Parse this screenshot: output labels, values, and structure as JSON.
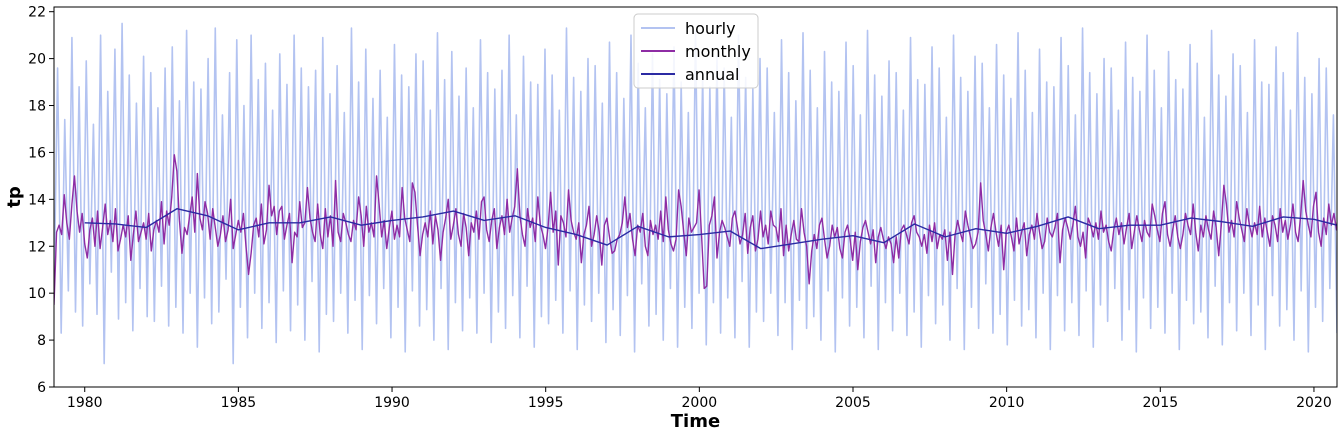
{
  "chart_data": {
    "type": "line",
    "xlabel": "Time",
    "ylabel": "tp",
    "xlim": [
      1979.0,
      2020.75
    ],
    "ylim": [
      6,
      22.2
    ],
    "x_ticks": [
      1980,
      1985,
      1990,
      1995,
      2000,
      2005,
      2010,
      2015,
      2020
    ],
    "y_ticks": [
      6,
      8,
      10,
      12,
      14,
      16,
      18,
      20,
      22
    ],
    "legend_position": "top-center",
    "grid": false,
    "series": [
      {
        "name": "hourly",
        "color": "#b3c3f1",
        "description_range": [
          7.0,
          21.5
        ],
        "x_start": 1979.0,
        "x_end": 2020.75,
        "mean": 12.8,
        "values": [
          9.8,
          19.6,
          8.3,
          17.4,
          10.1,
          20.9,
          9.2,
          18.8,
          8.6,
          19.9,
          10.4,
          17.2,
          9.1,
          21.0,
          7.0,
          18.6,
          10.9,
          20.4,
          8.9,
          21.5,
          9.6,
          19.3,
          8.4,
          18.1,
          10.2,
          20.1,
          9.0,
          19.4,
          8.8,
          17.9,
          10.3,
          19.6,
          8.6,
          20.5,
          9.4,
          18.2,
          8.3,
          21.2,
          10.0,
          19.0,
          7.7,
          18.7,
          9.8,
          20.0,
          8.7,
          21.3,
          9.2,
          17.6,
          10.6,
          19.4,
          7.0,
          20.8,
          9.4,
          18.0,
          8.1,
          21.0,
          10.0,
          19.1,
          8.5,
          19.8,
          9.6,
          17.8,
          7.9,
          20.2,
          10.1,
          18.9,
          8.4,
          21.0,
          9.5,
          19.6,
          8.0,
          18.8,
          10.5,
          19.5,
          7.5,
          20.9,
          9.1,
          18.5,
          8.8,
          19.7,
          10.0,
          17.7,
          8.3,
          21.3,
          9.7,
          19.0,
          7.6,
          20.4,
          9.9,
          18.3,
          8.7,
          19.5,
          10.2,
          17.5,
          8.1,
          20.6,
          9.4,
          19.3,
          7.5,
          18.8,
          10.1,
          20.2,
          8.6,
          19.9,
          9.3,
          17.8,
          8.0,
          21.1,
          10.2,
          19.1,
          7.6,
          20.3,
          9.6,
          18.4,
          8.4,
          19.6,
          9.8,
          17.9,
          8.3,
          20.8,
          10.0,
          19.4,
          7.9,
          18.7,
          9.2,
          19.5,
          8.5,
          21.0,
          9.9,
          17.6,
          8.1,
          20.1,
          10.3,
          19.0,
          7.7,
          18.9,
          9.0,
          20.4,
          8.7,
          19.3,
          9.7,
          17.8,
          8.3,
          21.3,
          10.1,
          19.2,
          7.6,
          18.6,
          9.5,
          20.0,
          8.8,
          19.7,
          10.0,
          18.1,
          7.9,
          20.7,
          9.3,
          19.4,
          8.2,
          18.3,
          9.9,
          21.0,
          7.5,
          19.8,
          10.4,
          17.9,
          8.6,
          20.2,
          9.1,
          19.1,
          8.0,
          18.5,
          10.2,
          20.5,
          7.7,
          19.0,
          9.4,
          17.7,
          8.5,
          21.2,
          10.0,
          19.3,
          7.8,
          18.8,
          9.6,
          20.1,
          8.3,
          19.6,
          9.8,
          17.5,
          8.1,
          21.0,
          10.5,
          19.2,
          7.7,
          18.7,
          9.2,
          20.0,
          8.8,
          19.6,
          10.0,
          17.7,
          8.2,
          20.8,
          9.6,
          19.4,
          7.6,
          18.2,
          9.7,
          21.1,
          8.5,
          19.5,
          9.0,
          17.9,
          8.0,
          20.3,
          10.1,
          19.0,
          7.5,
          18.6,
          9.8,
          20.7,
          8.6,
          19.7,
          9.4,
          17.6,
          8.1,
          21.2,
          10.3,
          19.3,
          7.6,
          18.4,
          9.6,
          19.9,
          8.4,
          19.4,
          10.0,
          17.8,
          8.2,
          20.9,
          9.2,
          19.1,
          7.7,
          18.9,
          9.9,
          20.5,
          8.7,
          19.6,
          9.5,
          17.5,
          8.0,
          21.0,
          10.2,
          19.2,
          7.6,
          18.6,
          9.4,
          20.1,
          8.5,
          19.8,
          10.4,
          17.9,
          8.3,
          20.6,
          9.1,
          19.3,
          7.8,
          18.3,
          9.7,
          21.1,
          8.6,
          19.5,
          9.3,
          17.7,
          8.1,
          20.4,
          10.0,
          19.0,
          7.6,
          18.8,
          9.9,
          20.9,
          8.4,
          19.7,
          9.6,
          17.6,
          8.2,
          21.3,
          10.1,
          19.4,
          7.7,
          18.5,
          9.5,
          20.0,
          8.8,
          19.6,
          10.2,
          17.8,
          8.0,
          20.7,
          9.3,
          19.2,
          7.5,
          18.6,
          9.8,
          21.0,
          8.5,
          19.5,
          9.4,
          17.9,
          8.3,
          20.3,
          10.0,
          19.1,
          7.6,
          18.7,
          9.7,
          20.6,
          8.7,
          19.8,
          9.2,
          17.5,
          8.1,
          21.2,
          10.3,
          19.3,
          7.8,
          18.4,
          9.6,
          20.2,
          8.4,
          19.7,
          10.0,
          17.7,
          8.2,
          20.8,
          9.5,
          19.0,
          7.6,
          18.9,
          9.9,
          20.5,
          8.6,
          19.4,
          9.3,
          17.8,
          8.0,
          21.1,
          10.1,
          19.2,
          7.5,
          18.5,
          9.4,
          20.0,
          8.8,
          19.6,
          10.2,
          17.6,
          8.3
        ]
      },
      {
        "name": "monthly",
        "color": "#8e2ca4",
        "x_start": 1979.0,
        "x_step": 0.0833,
        "values": [
          9.5,
          12.6,
          12.9,
          12.5,
          14.2,
          13.0,
          12.3,
          13.8,
          15.0,
          13.5,
          12.6,
          13.4,
          12.1,
          11.5,
          12.7,
          13.2,
          12.0,
          13.5,
          11.9,
          12.8,
          13.8,
          12.5,
          13.1,
          12.2,
          13.6,
          11.8,
          12.3,
          12.9,
          12.4,
          13.3,
          11.4,
          12.5,
          13.5,
          12.2,
          12.6,
          13.0,
          12.3,
          13.4,
          11.8,
          12.7,
          13.1,
          12.6,
          13.9,
          12.1,
          13.5,
          12.9,
          14.1,
          15.9,
          15.2,
          13.1,
          11.7,
          12.8,
          12.5,
          13.3,
          14.1,
          12.6,
          15.1,
          13.2,
          12.7,
          13.9,
          13.4,
          12.3,
          13.6,
          12.8,
          12.0,
          12.5,
          13.3,
          12.2,
          12.7,
          14.0,
          11.9,
          12.5,
          13.1,
          12.6,
          13.4,
          12.0,
          10.8,
          11.7,
          12.9,
          13.2,
          12.4,
          13.8,
          12.1,
          12.7,
          14.6,
          13.3,
          13.7,
          12.5,
          13.5,
          13.7,
          12.3,
          12.9,
          13.4,
          11.3,
          12.6,
          12.4,
          13.9,
          12.8,
          13.0,
          14.5,
          13.2,
          12.6,
          12.2,
          13.8,
          12.5,
          11.9,
          13.6,
          12.4,
          13.3,
          12.0,
          14.8,
          12.6,
          12.2,
          13.4,
          13.0,
          12.5,
          12.2,
          13.1,
          12.7,
          14.1,
          13.3,
          12.0,
          13.7,
          12.6,
          13.0,
          12.4,
          15.0,
          13.8,
          12.4,
          13.1,
          11.9,
          12.8,
          13.5,
          12.3,
          12.9,
          12.4,
          14.5,
          13.2,
          12.7,
          12.2,
          14.7,
          14.3,
          12.9,
          11.6,
          12.5,
          13.0,
          12.4,
          13.5,
          12.1,
          13.3,
          12.7,
          11.4,
          12.6,
          13.2,
          14.0,
          12.3,
          12.9,
          13.6,
          12.5,
          12.0,
          13.4,
          12.8,
          11.6,
          13.0,
          12.6,
          13.5,
          12.3,
          13.9,
          14.1,
          12.7,
          12.2,
          13.1,
          13.6,
          11.9,
          12.8,
          13.3,
          12.5,
          14.0,
          12.6,
          13.2,
          13.7,
          15.3,
          13.3,
          12.5,
          12.0,
          13.6,
          12.8,
          13.2,
          12.2,
          14.1,
          12.9,
          12.5,
          11.9,
          12.8,
          14.3,
          12.6,
          13.5,
          11.2,
          13.3,
          13.0,
          12.4,
          14.4,
          13.1,
          12.6,
          12.3,
          13.0,
          11.3,
          12.5,
          12.9,
          13.7,
          12.0,
          12.5,
          13.3,
          12.6,
          11.2,
          12.9,
          13.2,
          12.4,
          11.7,
          11.8,
          12.3,
          12.5,
          13.0,
          14.1,
          12.8,
          13.4,
          12.3,
          11.6,
          12.9,
          12.6,
          13.4,
          12.0,
          11.6,
          13.1,
          12.5,
          12.9,
          12.3,
          13.5,
          12.2,
          14.1,
          12.7,
          12.1,
          11.8,
          12.3,
          14.4,
          13.7,
          12.6,
          11.6,
          13.2,
          12.6,
          12.8,
          13.0,
          14.4,
          12.4,
          10.2,
          10.3,
          12.9,
          13.3,
          14.1,
          11.5,
          12.6,
          13.1,
          12.8,
          12.4,
          12.0,
          13.2,
          13.5,
          12.8,
          12.1,
          12.5,
          13.4,
          11.7,
          12.8,
          13.3,
          11.8,
          12.3,
          13.5,
          12.4,
          12.9,
          12.1,
          13.5,
          12.9,
          12.8,
          12.2,
          13.6,
          11.6,
          12.9,
          11.8,
          12.5,
          13.1,
          12.3,
          12.2,
          13.6,
          12.6,
          12.0,
          10.4,
          11.8,
          12.5,
          11.9,
          12.9,
          13.2,
          12.3,
          11.5,
          12.0,
          12.9,
          12.4,
          12.8,
          11.9,
          11.5,
          12.6,
          12.9,
          12.3,
          11.4,
          12.6,
          11.0,
          12.2,
          12.8,
          13.1,
          12.6,
          12.1,
          12.7,
          11.3,
          12.4,
          12.8,
          12.3,
          11.9,
          12.4,
          12.1,
          11.3,
          12.4,
          11.5,
          12.7,
          12.9,
          12.5,
          12.1,
          13.0,
          13.3,
          12.6,
          12.4,
          12.0,
          12.5,
          11.7,
          12.9,
          12.2,
          13.0,
          11.9,
          12.5,
          12.3,
          12.7,
          11.4,
          12.6,
          10.8,
          12.5,
          13.1,
          12.6,
          12.2,
          13.5,
          12.9,
          12.4,
          11.9,
          12.1,
          12.6,
          14.7,
          13.1,
          12.5,
          11.8,
          12.8,
          13.4,
          12.6,
          12.0,
          12.9,
          11.0,
          12.6,
          12.9,
          12.4,
          11.8,
          13.2,
          12.1,
          12.6,
          13.0,
          11.6,
          12.5,
          12.9,
          12.3,
          13.4,
          12.6,
          11.9,
          12.2,
          13.2,
          12.6,
          12.4,
          12.8,
          13.4,
          11.3,
          12.7,
          13.2,
          12.8,
          12.3,
          12.9,
          13.7,
          12.4,
          12.0,
          12.6,
          11.5,
          13.2,
          12.9,
          12.4,
          13.0,
          12.3,
          13.5,
          12.6,
          12.9,
          12.2,
          11.8,
          12.7,
          13.2,
          12.5,
          13.0,
          12.1,
          12.8,
          13.4,
          11.9,
          12.6,
          13.3,
          12.7,
          12.2,
          13.1,
          12.6,
          12.4,
          13.8,
          13.3,
          12.7,
          12.2,
          13.4,
          13.9,
          12.5,
          12.0,
          12.7,
          13.3,
          12.4,
          11.9,
          12.5,
          13.4,
          12.9,
          12.5,
          13.8,
          12.6,
          11.8,
          12.9,
          12.4,
          13.3,
          12.7,
          12.3,
          13.5,
          12.8,
          11.6,
          12.9,
          14.6,
          13.8,
          12.6,
          13.1,
          12.4,
          13.9,
          13.2,
          12.7,
          12.2,
          13.6,
          12.9,
          12.4,
          13.0,
          12.5,
          13.7,
          12.4,
          13.2,
          12.6,
          12.0,
          13.3,
          12.9,
          12.2,
          13.6,
          12.6,
          13.1,
          12.3,
          12.9,
          13.8,
          12.6,
          12.2,
          13.3,
          14.8,
          13.5,
          12.9,
          12.4,
          13.7,
          14.3,
          12.6,
          12.0,
          13.2,
          12.5,
          13.8,
          12.9,
          13.4,
          12.7,
          14.0,
          15.0,
          14.3,
          13.3,
          12.1,
          12.6,
          13.1,
          12.8
        ]
      },
      {
        "name": "annual",
        "color": "#2b2aa3",
        "x": [
          1980,
          1981,
          1982,
          1983,
          1984,
          1985,
          1986,
          1987,
          1988,
          1989,
          1990,
          1991,
          1992,
          1993,
          1994,
          1995,
          1996,
          1997,
          1998,
          1999,
          2000,
          2001,
          2002,
          2003,
          2004,
          2005,
          2006,
          2007,
          2008,
          2009,
          2010,
          2011,
          2012,
          2013,
          2014,
          2015,
          2016,
          2017,
          2018,
          2019,
          2020,
          2020.75
        ],
        "values": [
          13.0,
          12.95,
          12.8,
          13.6,
          13.3,
          12.7,
          13.0,
          13.0,
          13.25,
          12.9,
          13.1,
          13.25,
          13.5,
          13.1,
          13.3,
          12.8,
          12.5,
          12.05,
          12.85,
          12.4,
          12.5,
          12.65,
          11.9,
          12.1,
          12.3,
          12.45,
          12.15,
          12.95,
          12.4,
          12.75,
          12.55,
          12.85,
          13.25,
          12.75,
          12.9,
          12.9,
          13.2,
          13.05,
          12.85,
          13.25,
          13.15,
          12.9
        ]
      }
    ]
  }
}
